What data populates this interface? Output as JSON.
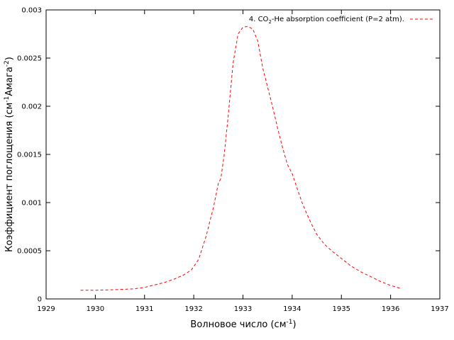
{
  "chart_data": {
    "type": "line",
    "xlabel_main": "Волновое число (см",
    "xlabel_sup": "-1",
    "xlabel_end": ")",
    "ylabel_main": "Коэффициент поглощения (см",
    "ylabel_sup1": "-1",
    "ylabel_mid": "Амага",
    "ylabel_sup2": "-2",
    "ylabel_end": ")",
    "xlim": [
      1929,
      1937
    ],
    "ylim": [
      0,
      0.003
    ],
    "xticks": [
      "1929",
      "1930",
      "1931",
      "1932",
      "1933",
      "1934",
      "1935",
      "1936",
      "1937"
    ],
    "yticks": [
      "0",
      "0.0005",
      "0.001",
      "0.0015",
      "0.002",
      "0.0025",
      "0.003"
    ],
    "grid": false,
    "legend_position": "top-right",
    "series": [
      {
        "name_pre": "4. CO",
        "name_sub": "2",
        "name_post": "-He absorption coefficient (P=2 atm).",
        "color": "#ff0000",
        "style": "dashed",
        "x": [
          1929.7,
          1930.0,
          1930.3,
          1930.6,
          1930.8,
          1931.0,
          1931.2,
          1931.4,
          1931.6,
          1931.8,
          1931.95,
          1932.1,
          1932.25,
          1932.4,
          1932.5,
          1932.55,
          1932.62,
          1932.7,
          1932.8,
          1932.9,
          1933.0,
          1933.1,
          1933.2,
          1933.3,
          1933.4,
          1933.5,
          1933.6,
          1933.7,
          1933.8,
          1933.9,
          1934.0,
          1934.1,
          1934.2,
          1934.3,
          1934.4,
          1934.5,
          1934.65,
          1934.8,
          1935.0,
          1935.2,
          1935.4,
          1935.6,
          1935.8,
          1936.0,
          1936.2
        ],
        "y": [
          9e-05,
          9e-05,
          9.5e-05,
          0.0001,
          0.000105,
          0.00012,
          0.000145,
          0.00017,
          0.000205,
          0.00025,
          0.0003,
          0.000412,
          0.00065,
          0.00095,
          0.0012,
          0.00125,
          0.0015,
          0.0019,
          0.00245,
          0.00275,
          0.00282,
          0.00283,
          0.0028,
          0.00268,
          0.0024,
          0.0022,
          0.002,
          0.00178,
          0.00158,
          0.0014,
          0.0013,
          0.00115,
          0.001,
          0.00088,
          0.00077,
          0.00067,
          0.00057,
          0.0005,
          0.00042,
          0.00034,
          0.00028,
          0.00023,
          0.00018,
          0.00014,
          0.00011
        ]
      }
    ]
  }
}
